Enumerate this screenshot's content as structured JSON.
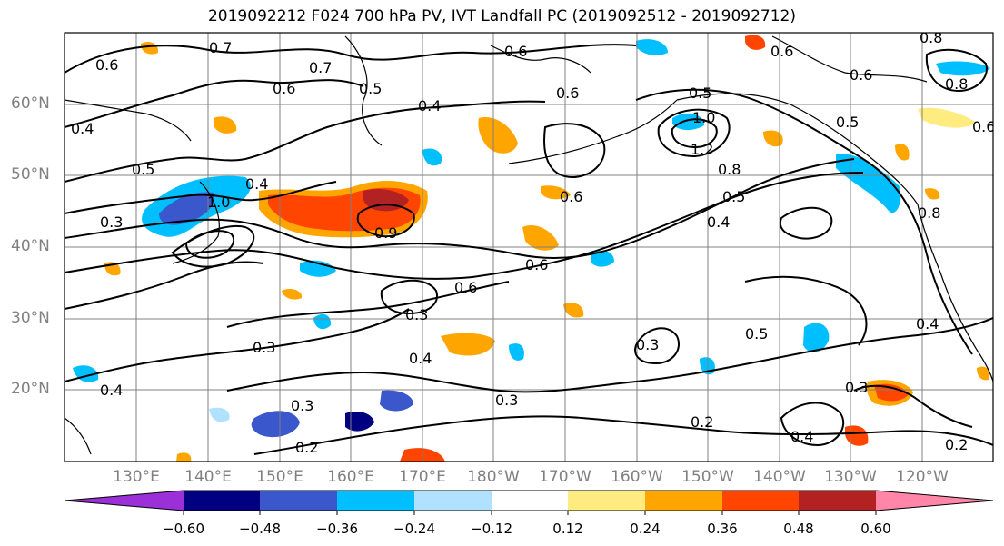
{
  "title": "2019092212 F024 700 hPa PV, IVT Landfall PC (2019092512 - 2019092712)",
  "lat_labels": [
    "60°N",
    "50°N",
    "40°N",
    "30°N",
    "20°N"
  ],
  "lon_labels": [
    "130°E",
    "140°E",
    "150°E",
    "160°E",
    "170°E",
    "180°W",
    "170°W",
    "160°W",
    "150°W",
    "140°W",
    "130°W",
    "120°W"
  ],
  "colorbar": {
    "colors": [
      "#9b30d9",
      "#000080",
      "#3a57cc",
      "#00bfff",
      "#b0e2ff",
      "#ffffff",
      "#ffec80",
      "#ffa500",
      "#ff4500",
      "#b22222",
      "#ff85a9"
    ],
    "tick_labels": [
      "−0.60",
      "−0.48",
      "−0.36",
      "−0.24",
      "−0.12",
      "0.12",
      "0.24",
      "0.36",
      "0.48",
      "0.60"
    ]
  },
  "contour_labels": [
    "0.6",
    "0.7",
    "0.6",
    "0.8",
    "0.7",
    "0.6",
    "0.5",
    "0.4",
    "0.4",
    "0.5",
    "0.8",
    "1.0",
    "0.3",
    "0.4",
    "0.6",
    "0.6",
    "0.6",
    "0.3",
    "0.4",
    "0.3",
    "0.3",
    "0.3",
    "0.2",
    "0.5",
    "1.2",
    "0.8",
    "0.5",
    "0.4",
    "0.5",
    "0.8",
    "0.4",
    "0.5",
    "0.4",
    "0.3",
    "0.4",
    "0.3",
    "0.2",
    "0.2",
    "0.6",
    "0.6",
    "1.0",
    "0.9",
    "0.6",
    "0.6"
  ],
  "colors": {
    "graticule": "#808080",
    "contour": "#000000",
    "axis_label": "#808080"
  }
}
